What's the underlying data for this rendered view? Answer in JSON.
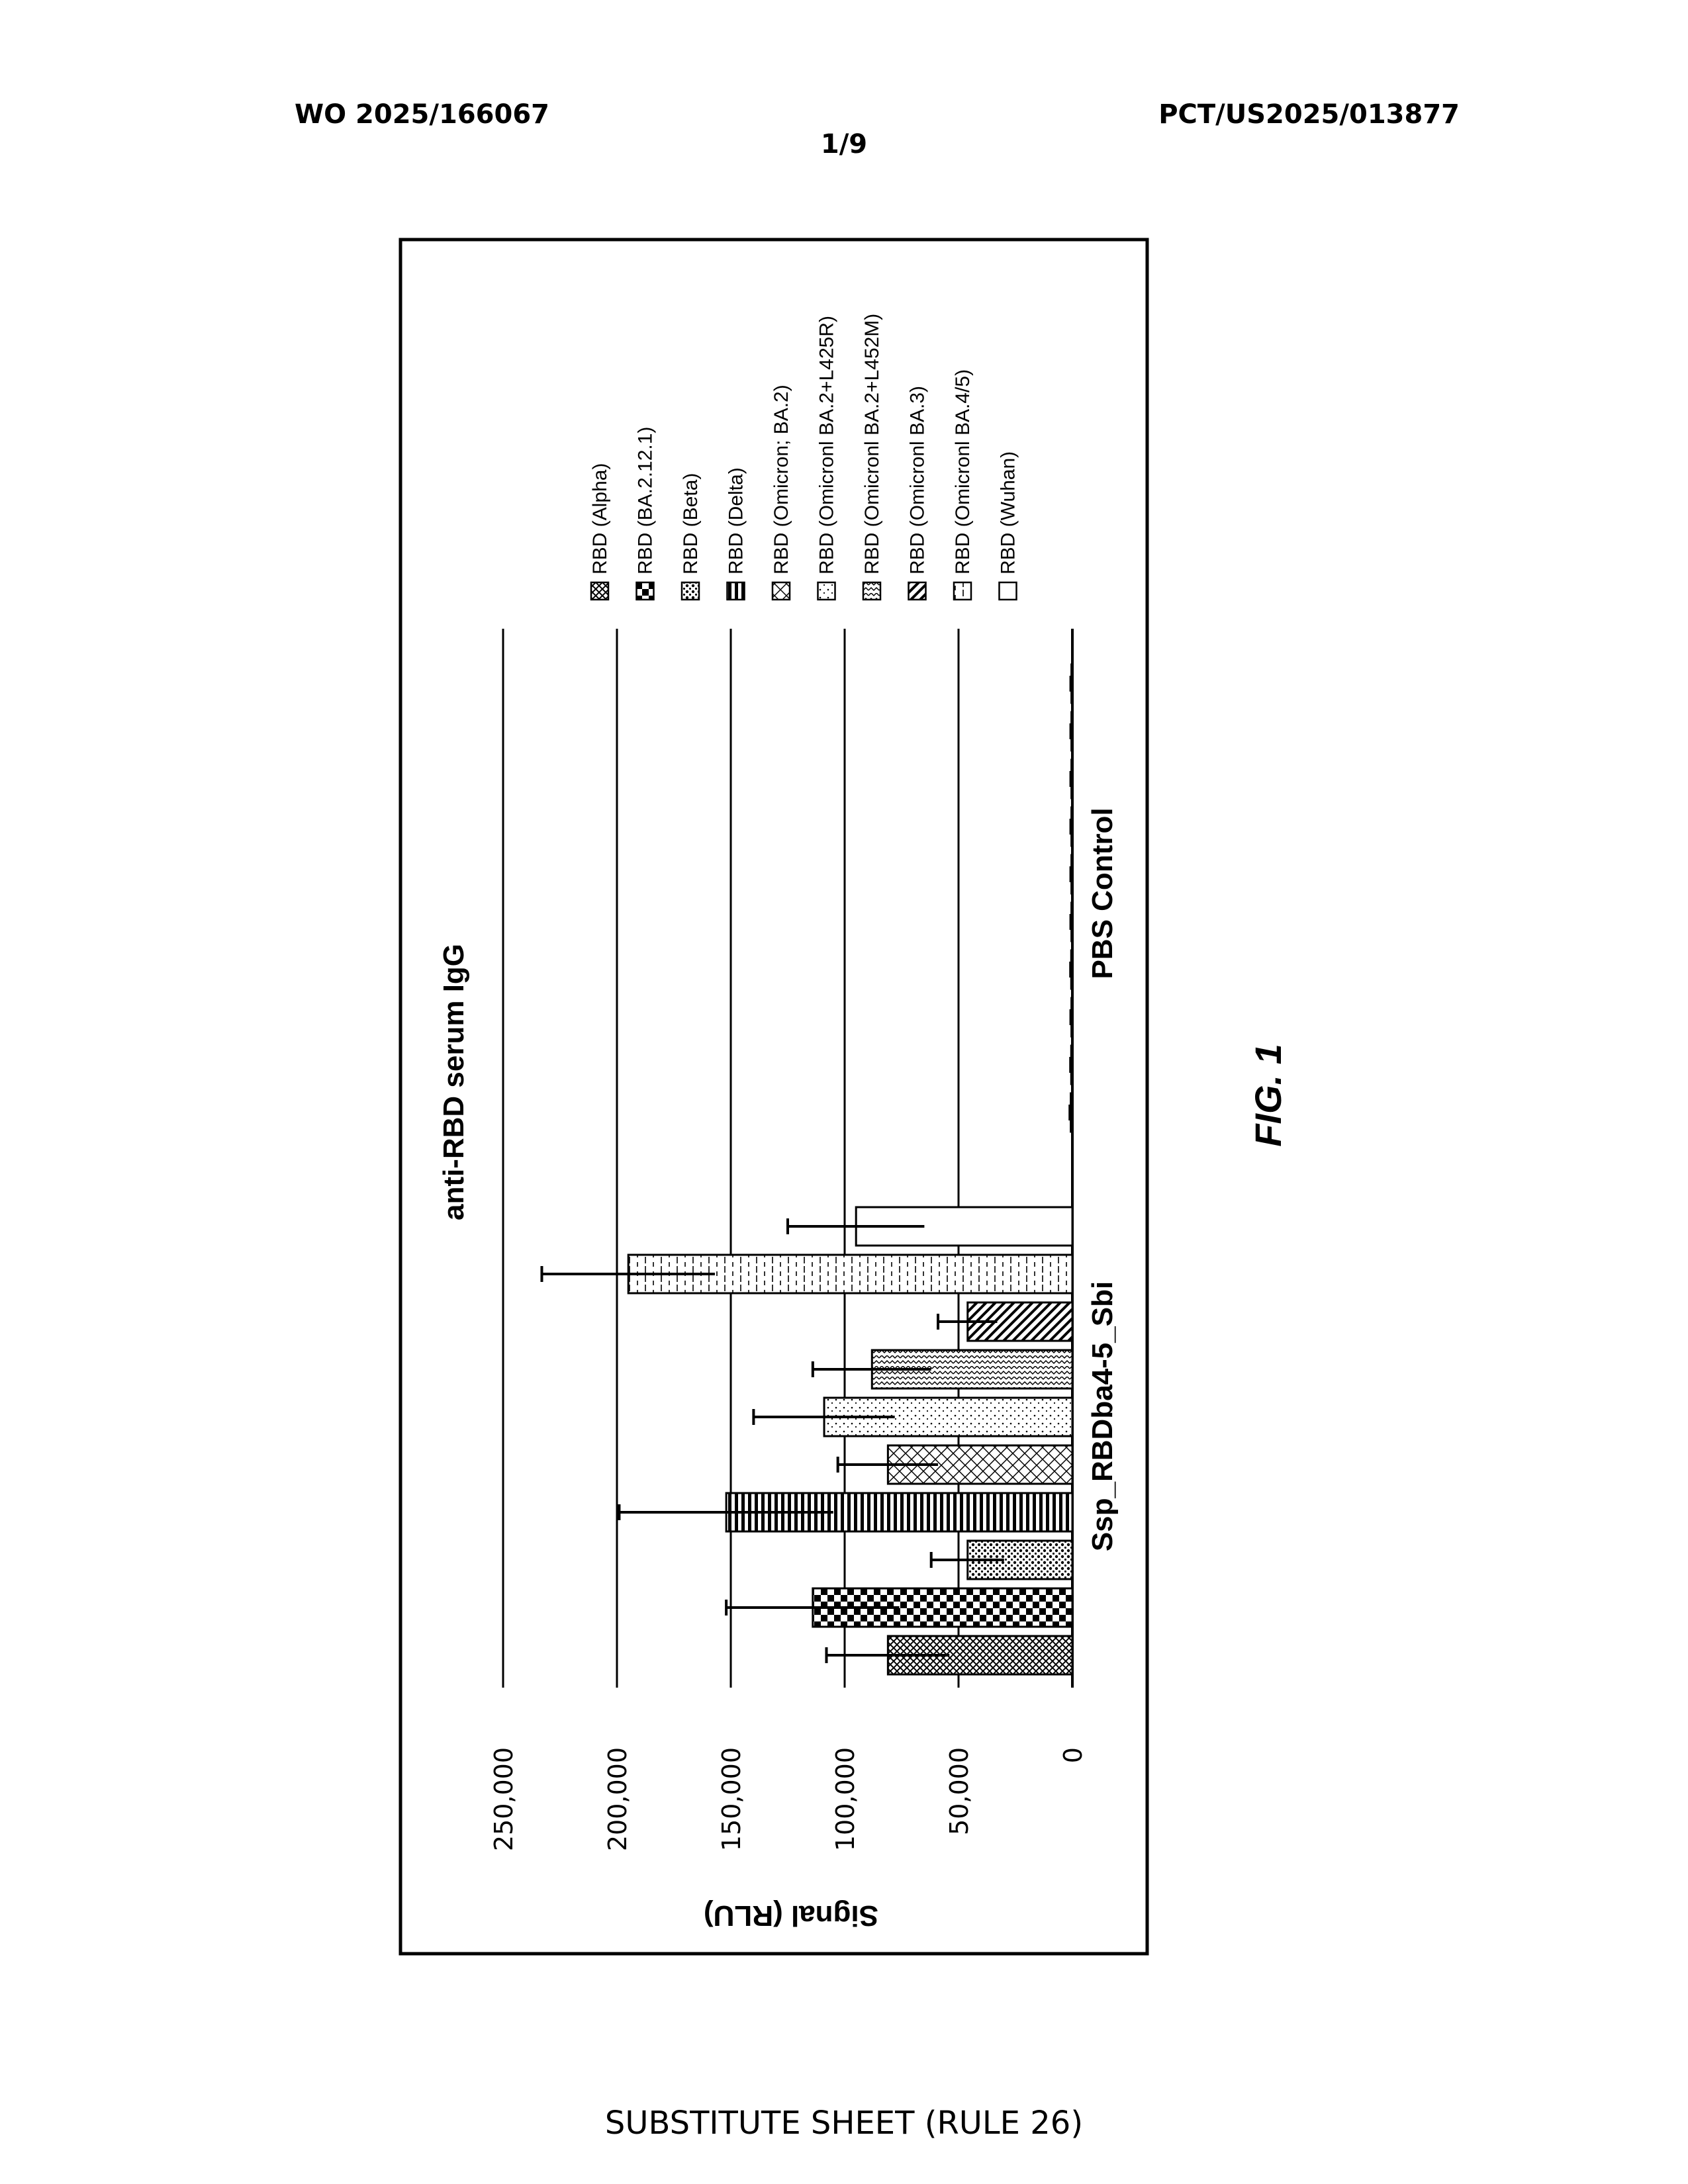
{
  "header": {
    "publication_number": "WO 2025/166067",
    "application_number": "PCT/US2025/013877",
    "sheet_number": "1/9"
  },
  "figure_label": "FIG. 1",
  "footer": "SUBSTITUTE SHEET (RULE 26)",
  "chart_data": {
    "type": "bar",
    "title": "anti-RBD serum IgG",
    "ylabel": "Signal (RLU)",
    "xlabel": "",
    "ylim": [
      0,
      250000
    ],
    "yticks": [
      "0",
      "50,000",
      "100,000",
      "150,000",
      "200,000",
      "250,000"
    ],
    "grid": true,
    "legend_position": "right",
    "orientation": "rotated-90",
    "categories": [
      "Ssp_RBDba4-5_Sbi",
      "PBS Control"
    ],
    "series": [
      {
        "name": "RBD (Alpha)",
        "pattern": "crosshatch-dense",
        "values": [
          81000,
          700
        ],
        "errors": [
          27000,
          400
        ]
      },
      {
        "name": "RBD (BA.2.12.1)",
        "pattern": "checker",
        "values": [
          114000,
          500
        ],
        "errors": [
          38000,
          300
        ]
      },
      {
        "name": "RBD (Beta)",
        "pattern": "dots-dense",
        "values": [
          46000,
          400
        ],
        "errors": [
          16000,
          300
        ]
      },
      {
        "name": "RBD (Delta)",
        "pattern": "horizontal-stripes",
        "values": [
          152000,
          500
        ],
        "errors": [
          47000,
          300
        ]
      },
      {
        "name": "RBD (Omicron; BA.2)",
        "pattern": "crosshatch",
        "values": [
          81000,
          400
        ],
        "errors": [
          22000,
          300
        ]
      },
      {
        "name": "RBD (Omicronl BA.2+L425R)",
        "pattern": "dots-sparse",
        "values": [
          109000,
          400
        ],
        "errors": [
          31000,
          300
        ]
      },
      {
        "name": "RBD (Omicronl BA.2+L452M)",
        "pattern": "zigzag",
        "values": [
          88000,
          400
        ],
        "errors": [
          26000,
          300
        ]
      },
      {
        "name": "RBD (Omicronl BA.3)",
        "pattern": "diagonal",
        "values": [
          46000,
          400
        ],
        "errors": [
          13000,
          300
        ]
      },
      {
        "name": "RBD (Omicronl BA.4/5)",
        "pattern": "dashes",
        "values": [
          195000,
          400
        ],
        "errors": [
          38000,
          300
        ]
      },
      {
        "name": "RBD (Wuhan)",
        "pattern": "none",
        "values": [
          95000,
          400
        ],
        "errors": [
          30000,
          300
        ]
      }
    ]
  }
}
